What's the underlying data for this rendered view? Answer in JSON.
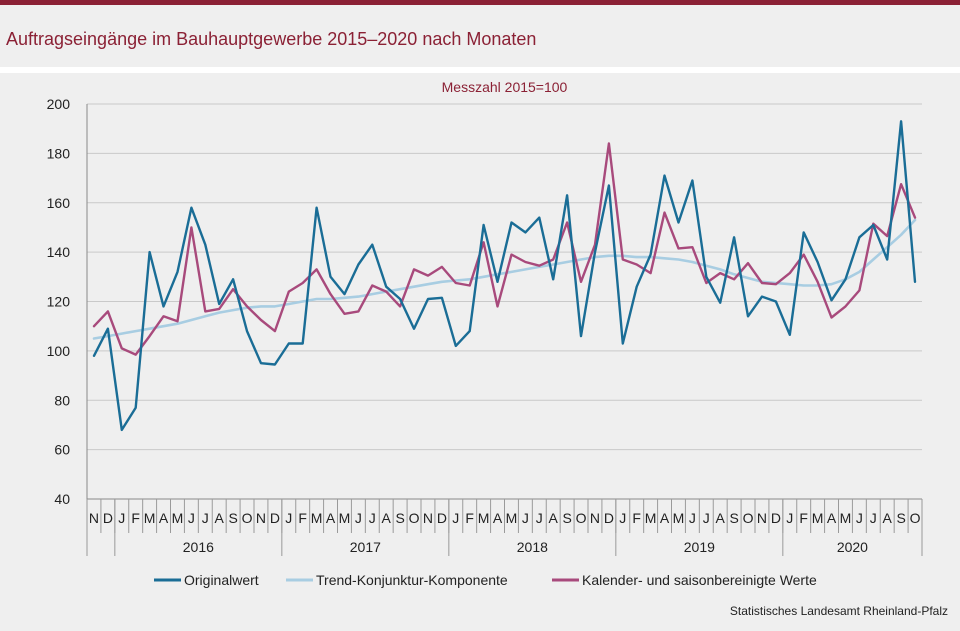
{
  "page": {
    "title": "Auftragseingänge im Bauhauptgewerbe 2015–2020 nach Monaten",
    "source": "Statistisches Landesamt  Rheinland-Pfalz"
  },
  "colors": {
    "original": "#1a6d96",
    "trend": "#a8cde2",
    "adjusted": "#a84a7c",
    "accent": "#8b2135"
  },
  "chart_data": {
    "type": "line",
    "subtitle": "Messzahl  2015=100",
    "ylim": [
      40,
      200
    ],
    "yticks": [
      40,
      60,
      80,
      100,
      120,
      140,
      160,
      180,
      200
    ],
    "grid": true,
    "legend_position": "bottom",
    "month_labels": [
      "N",
      "D",
      "J",
      "F",
      "M",
      "A",
      "M",
      "J",
      "J",
      "A",
      "S",
      "O",
      "N",
      "D",
      "J",
      "F",
      "M",
      "A",
      "M",
      "J",
      "J",
      "A",
      "S",
      "O",
      "N",
      "D",
      "J",
      "F",
      "M",
      "A",
      "M",
      "J",
      "J",
      "A",
      "S",
      "O",
      "N",
      "D",
      "J",
      "F",
      "M",
      "A",
      "M",
      "J",
      "J",
      "A",
      "S",
      "O",
      "N",
      "D",
      "J",
      "F",
      "M",
      "A",
      "M",
      "J",
      "J",
      "A",
      "S",
      "O"
    ],
    "years": [
      {
        "label": "2016",
        "start": 2,
        "end": 13
      },
      {
        "label": "2017",
        "start": 14,
        "end": 25
      },
      {
        "label": "2018",
        "start": 26,
        "end": 37
      },
      {
        "label": "2019",
        "start": 38,
        "end": 49
      },
      {
        "label": "2020",
        "start": 50,
        "end": 59
      }
    ],
    "series": [
      {
        "name": "Originalwert",
        "values": [
          98,
          109,
          68,
          77,
          140,
          118,
          132,
          158,
          143,
          119,
          129,
          108,
          95,
          94.5,
          103,
          103,
          158,
          130,
          123,
          135,
          143,
          126,
          121,
          109,
          121,
          121.5,
          102,
          108,
          151,
          128,
          152,
          148,
          154,
          129,
          163,
          106,
          140,
          167,
          103,
          126,
          139,
          171,
          152,
          169,
          130,
          119.5,
          146,
          114,
          122,
          120,
          106.5,
          148,
          136,
          120.5,
          129,
          146,
          151,
          137,
          193,
          128
        ]
      },
      {
        "name": "Trend-Konjunktur-Komponente",
        "values": [
          105,
          106,
          107,
          108,
          109,
          110,
          111,
          112.5,
          114,
          115.5,
          116.5,
          117.5,
          118,
          118,
          119,
          120,
          121,
          121,
          121.5,
          122,
          123,
          124,
          125,
          126,
          127,
          128,
          128.5,
          129,
          130,
          131,
          132,
          133,
          134,
          135,
          136,
          137,
          138,
          138.5,
          138.5,
          138,
          138,
          137.5,
          137,
          136,
          134.5,
          133,
          131,
          129.5,
          128,
          127.5,
          127,
          126.5,
          126.5,
          127,
          129,
          132,
          137,
          142,
          147,
          153
        ]
      },
      {
        "name": "Kalender- und saisonbereinigte Werte",
        "values": [
          110,
          116,
          101,
          98.5,
          106,
          114,
          112,
          150,
          116,
          117,
          125,
          118,
          112.5,
          108,
          124,
          127.5,
          133,
          123,
          115,
          116,
          126.5,
          124,
          118,
          133,
          130.5,
          134,
          127.5,
          126.5,
          144,
          118,
          139,
          136,
          134.5,
          137,
          152,
          128,
          143,
          184,
          137,
          135,
          131.5,
          156,
          141.5,
          142,
          127.5,
          131.5,
          129,
          135.5,
          127.5,
          127,
          131.5,
          139,
          128,
          113.5,
          118,
          124.5,
          151.5,
          146.5,
          167.5,
          154
        ]
      }
    ]
  }
}
